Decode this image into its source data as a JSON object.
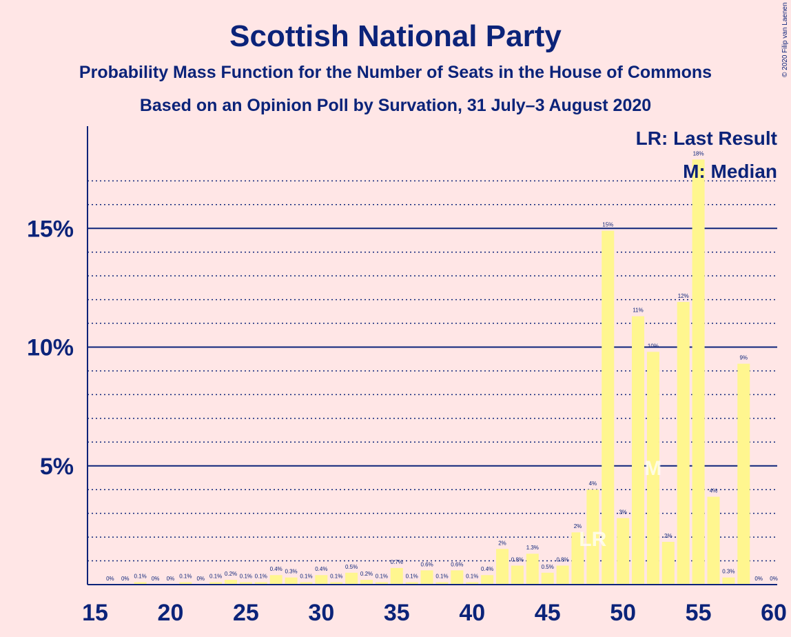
{
  "chart_data": {
    "type": "bar",
    "title": "Scottish National Party",
    "subtitle": "Probability Mass Function for the Number of Seats in the House of Commons",
    "subtitle2": "Based on an Opinion Poll by Survation, 31 July–3 August 2020",
    "copyright": "© 2020 Filip van Laenen",
    "x": [
      16,
      17,
      18,
      19,
      20,
      21,
      22,
      23,
      24,
      25,
      26,
      27,
      28,
      29,
      30,
      31,
      32,
      33,
      34,
      35,
      36,
      37,
      38,
      39,
      40,
      41,
      42,
      43,
      44,
      45,
      46,
      47,
      48,
      49,
      50,
      51,
      52,
      53,
      54,
      55,
      56,
      57,
      58,
      59,
      60
    ],
    "values": [
      0,
      0,
      0.1,
      0,
      0,
      0.1,
      0,
      0.1,
      0.2,
      0.1,
      0.1,
      0.4,
      0.3,
      0.1,
      0.4,
      0.1,
      0.5,
      0.2,
      0.1,
      0.7,
      0.1,
      0.6,
      0.1,
      0.6,
      0.1,
      0.4,
      1.5,
      0.8,
      1.3,
      0.5,
      0.8,
      2.2,
      4.0,
      14.9,
      2.8,
      11.3,
      9.8,
      1.8,
      11.9,
      17.9,
      3.7,
      0.3,
      9.3,
      0,
      0
    ],
    "labels": [
      "0%",
      "0%",
      "0.1%",
      "0%",
      "0%",
      "0.1%",
      "0%",
      "0.1%",
      "0.2%",
      "0.1%",
      "0.1%",
      "0.4%",
      "0.3%",
      "0.1%",
      "0.4%",
      "0.1%",
      "0.5%",
      "0.2%",
      "0.1%",
      "0.7%",
      "0.1%",
      "0.6%",
      "0.1%",
      "0.6%",
      "0.1%",
      "0.4%",
      "2%",
      "0.8%",
      "1.3%",
      "0.5%",
      "0.8%",
      "2%",
      "4%",
      "15%",
      "3%",
      "11%",
      "10%",
      "2%",
      "12%",
      "18%",
      "4%",
      "0.3%",
      "9%",
      "0%",
      "0%"
    ],
    "x_ticks": [
      "15",
      "20",
      "25",
      "30",
      "35",
      "40",
      "45",
      "50",
      "55",
      "60"
    ],
    "x_tick_values": [
      15,
      20,
      25,
      30,
      35,
      40,
      45,
      50,
      55,
      60
    ],
    "y_ticks": [
      "5%",
      "10%",
      "15%"
    ],
    "y_tick_values": [
      5,
      10,
      15
    ],
    "xlim": [
      15,
      60
    ],
    "ylim": [
      0,
      19
    ],
    "grid": true,
    "last_result_seat": 48,
    "median_seat": 52,
    "legend": {
      "last_result": "LR: Last Result",
      "median": "M: Median"
    },
    "marker_labels": {
      "last_result": "LR",
      "median": "M"
    },
    "colors": {
      "bar": "#FFF68F",
      "axis": "#0B2379",
      "background": "#FFE6E6"
    }
  }
}
